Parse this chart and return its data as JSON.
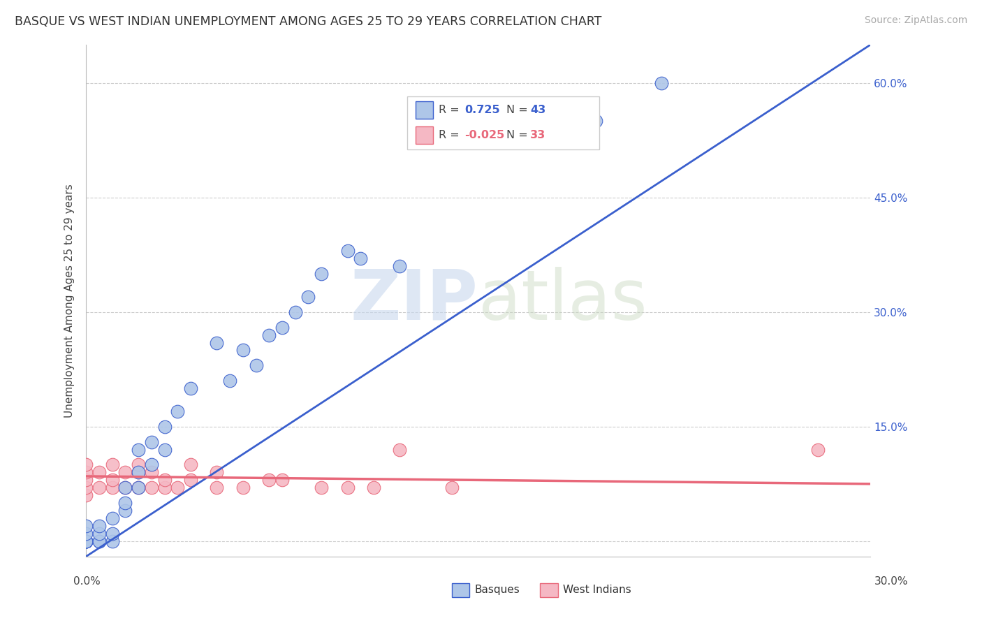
{
  "title": "BASQUE VS WEST INDIAN UNEMPLOYMENT AMONG AGES 25 TO 29 YEARS CORRELATION CHART",
  "source": "Source: ZipAtlas.com",
  "ylabel": "Unemployment Among Ages 25 to 29 years",
  "xlim": [
    0,
    0.3
  ],
  "ylim": [
    -0.02,
    0.65
  ],
  "yticks": [
    0.0,
    0.15,
    0.3,
    0.45,
    0.6
  ],
  "ytick_labels": [
    "",
    "15.0%",
    "30.0%",
    "45.0%",
    "60.0%"
  ],
  "legend_r_basque": "0.725",
  "legend_n_basque": "43",
  "legend_r_westindian": "-0.025",
  "legend_n_westindian": "33",
  "watermark_zip": "ZIP",
  "watermark_atlas": "atlas",
  "basque_color": "#aec6e8",
  "westindian_color": "#f5b8c4",
  "basque_line_color": "#3a5fcd",
  "westindian_line_color": "#e8687a",
  "basque_x": [
    0.0,
    0.0,
    0.0,
    0.0,
    0.0,
    0.0,
    0.0,
    0.0,
    0.005,
    0.005,
    0.005,
    0.005,
    0.01,
    0.01,
    0.01,
    0.015,
    0.015,
    0.015,
    0.02,
    0.02,
    0.02,
    0.025,
    0.025,
    0.03,
    0.03,
    0.035,
    0.04,
    0.05,
    0.055,
    0.06,
    0.065,
    0.07,
    0.075,
    0.08,
    0.085,
    0.09,
    0.1,
    0.105,
    0.12,
    0.13,
    0.17,
    0.195,
    0.22
  ],
  "basque_y": [
    0.0,
    0.0,
    0.0,
    0.0,
    0.0,
    0.0,
    0.01,
    0.02,
    0.0,
    0.0,
    0.01,
    0.02,
    0.0,
    0.01,
    0.03,
    0.04,
    0.05,
    0.07,
    0.07,
    0.09,
    0.12,
    0.1,
    0.13,
    0.12,
    0.15,
    0.17,
    0.2,
    0.26,
    0.21,
    0.25,
    0.23,
    0.27,
    0.28,
    0.3,
    0.32,
    0.35,
    0.38,
    0.37,
    0.36,
    0.55,
    0.55,
    0.55,
    0.6
  ],
  "westindian_x": [
    0.0,
    0.0,
    0.0,
    0.0,
    0.0,
    0.005,
    0.005,
    0.01,
    0.01,
    0.01,
    0.015,
    0.015,
    0.02,
    0.02,
    0.02,
    0.025,
    0.025,
    0.03,
    0.03,
    0.035,
    0.04,
    0.04,
    0.05,
    0.05,
    0.06,
    0.07,
    0.075,
    0.09,
    0.1,
    0.11,
    0.12,
    0.14,
    0.28
  ],
  "westindian_y": [
    0.06,
    0.07,
    0.08,
    0.09,
    0.1,
    0.07,
    0.09,
    0.07,
    0.08,
    0.1,
    0.07,
    0.09,
    0.07,
    0.09,
    0.1,
    0.07,
    0.09,
    0.07,
    0.08,
    0.07,
    0.08,
    0.1,
    0.07,
    0.09,
    0.07,
    0.08,
    0.08,
    0.07,
    0.07,
    0.07,
    0.12,
    0.07,
    0.12
  ],
  "basque_trend_x": [
    0.0,
    0.3
  ],
  "basque_trend_y": [
    -0.02,
    0.65
  ],
  "westindian_trend_x": [
    0.0,
    0.3
  ],
  "westindian_trend_y": [
    0.085,
    0.075
  ]
}
